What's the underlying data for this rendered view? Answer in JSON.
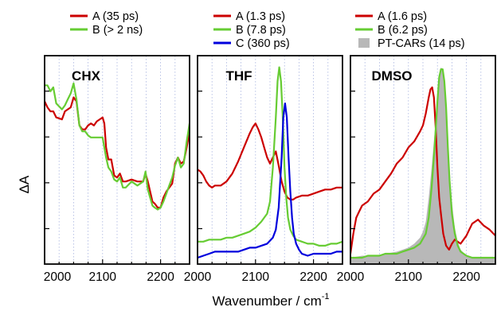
{
  "chart_data": [
    {
      "type": "line",
      "panel_title": "CHX",
      "x_range": [
        2000,
        2250
      ],
      "x_ticks": [
        2000,
        2100,
        2200
      ],
      "x_tick_labels": [
        "2000",
        "2100",
        "2200"
      ],
      "y_range": [
        0,
        1
      ],
      "legend_placement": "above",
      "colors": {
        "A": "#cc0000",
        "B": "#66cc33"
      },
      "series": [
        {
          "name": "A (35 ps)",
          "color": "#cc0000",
          "x": [
            2000,
            2005,
            2010,
            2015,
            2020,
            2030,
            2035,
            2040,
            2045,
            2050,
            2055,
            2060,
            2065,
            2070,
            2075,
            2080,
            2085,
            2090,
            2095,
            2100,
            2103,
            2106,
            2110,
            2115,
            2120,
            2125,
            2130,
            2135,
            2140,
            2150,
            2160,
            2170,
            2174,
            2178,
            2182,
            2186,
            2190,
            2195,
            2200,
            2205,
            2210,
            2215,
            2220,
            2225,
            2230,
            2235,
            2240,
            2245,
            2250
          ],
          "y": [
            0.78,
            0.75,
            0.73,
            0.73,
            0.7,
            0.69,
            0.73,
            0.74,
            0.75,
            0.8,
            0.78,
            0.66,
            0.64,
            0.64,
            0.66,
            0.67,
            0.66,
            0.68,
            0.69,
            0.7,
            0.67,
            0.55,
            0.49,
            0.49,
            0.41,
            0.4,
            0.42,
            0.38,
            0.38,
            0.39,
            0.38,
            0.38,
            0.42,
            0.38,
            0.33,
            0.28,
            0.27,
            0.25,
            0.25,
            0.3,
            0.33,
            0.35,
            0.37,
            0.47,
            0.5,
            0.47,
            0.48,
            0.55,
            0.63
          ]
        },
        {
          "name": "B (> 2 ns)",
          "color": "#66cc33",
          "x": [
            2000,
            2005,
            2010,
            2015,
            2020,
            2030,
            2035,
            2040,
            2045,
            2050,
            2055,
            2060,
            2065,
            2070,
            2075,
            2080,
            2085,
            2090,
            2095,
            2100,
            2103,
            2106,
            2110,
            2115,
            2120,
            2125,
            2130,
            2135,
            2140,
            2150,
            2160,
            2170,
            2174,
            2178,
            2182,
            2186,
            2190,
            2195,
            2200,
            2205,
            2210,
            2215,
            2220,
            2225,
            2230,
            2235,
            2240,
            2245,
            2250
          ],
          "y": [
            0.86,
            0.86,
            0.83,
            0.85,
            0.77,
            0.74,
            0.76,
            0.79,
            0.82,
            0.87,
            0.79,
            0.66,
            0.63,
            0.63,
            0.61,
            0.6,
            0.6,
            0.6,
            0.6,
            0.6,
            0.55,
            0.5,
            0.45,
            0.43,
            0.39,
            0.38,
            0.4,
            0.35,
            0.35,
            0.38,
            0.36,
            0.38,
            0.43,
            0.34,
            0.3,
            0.26,
            0.25,
            0.24,
            0.25,
            0.28,
            0.32,
            0.36,
            0.4,
            0.46,
            0.5,
            0.45,
            0.47,
            0.58,
            0.67
          ]
        }
      ]
    },
    {
      "type": "line",
      "panel_title": "THF",
      "x_range": [
        2000,
        2250
      ],
      "x_ticks": [
        2000,
        2100,
        2200
      ],
      "x_tick_labels": [
        "2000",
        "2100",
        "2200"
      ],
      "y_range": [
        0,
        1
      ],
      "legend_placement": "above",
      "colors": {
        "A": "#cc0000",
        "B": "#66cc33",
        "C": "#0000dd"
      },
      "series": [
        {
          "name": "A (1.3 ps)",
          "color": "#cc0000",
          "x": [
            2000,
            2005,
            2010,
            2015,
            2020,
            2025,
            2030,
            2040,
            2050,
            2060,
            2070,
            2080,
            2090,
            2095,
            2100,
            2105,
            2110,
            2115,
            2120,
            2125,
            2130,
            2135,
            2140,
            2145,
            2150,
            2155,
            2160,
            2165,
            2170,
            2180,
            2190,
            2200,
            2210,
            2220,
            2230,
            2240,
            2250
          ],
          "y": [
            0.44,
            0.43,
            0.41,
            0.38,
            0.36,
            0.35,
            0.36,
            0.36,
            0.38,
            0.42,
            0.48,
            0.55,
            0.62,
            0.65,
            0.67,
            0.64,
            0.6,
            0.55,
            0.5,
            0.47,
            0.5,
            0.53,
            0.46,
            0.38,
            0.33,
            0.3,
            0.29,
            0.29,
            0.3,
            0.31,
            0.31,
            0.32,
            0.33,
            0.34,
            0.34,
            0.35,
            0.35
          ]
        },
        {
          "name": "B (7.8 ps)",
          "color": "#66cc33",
          "x": [
            2000,
            2010,
            2020,
            2030,
            2040,
            2050,
            2060,
            2070,
            2080,
            2090,
            2100,
            2110,
            2120,
            2125,
            2130,
            2135,
            2138,
            2141,
            2144,
            2147,
            2150,
            2153,
            2156,
            2160,
            2165,
            2170,
            2180,
            2190,
            2200,
            2210,
            2220,
            2230,
            2240,
            2250
          ],
          "y": [
            0.08,
            0.08,
            0.09,
            0.09,
            0.09,
            0.1,
            0.1,
            0.11,
            0.12,
            0.13,
            0.15,
            0.18,
            0.22,
            0.28,
            0.45,
            0.7,
            0.88,
            0.95,
            0.88,
            0.7,
            0.45,
            0.3,
            0.2,
            0.14,
            0.11,
            0.09,
            0.08,
            0.07,
            0.07,
            0.06,
            0.06,
            0.07,
            0.07,
            0.08
          ]
        },
        {
          "name": "C (360 ps)",
          "color": "#0000dd",
          "x": [
            2000,
            2010,
            2020,
            2030,
            2040,
            2050,
            2060,
            2070,
            2080,
            2090,
            2100,
            2110,
            2120,
            2130,
            2135,
            2140,
            2145,
            2148,
            2151,
            2154,
            2157,
            2160,
            2163,
            2166,
            2170,
            2175,
            2180,
            2190,
            2200,
            2210,
            2220,
            2230,
            2240,
            2250
          ],
          "y": [
            0.0,
            0.01,
            0.02,
            0.03,
            0.03,
            0.03,
            0.03,
            0.03,
            0.04,
            0.05,
            0.05,
            0.06,
            0.07,
            0.1,
            0.14,
            0.25,
            0.5,
            0.7,
            0.77,
            0.7,
            0.5,
            0.33,
            0.2,
            0.12,
            0.07,
            0.04,
            0.02,
            0.01,
            0.02,
            0.02,
            0.02,
            0.02,
            0.03,
            0.03
          ]
        }
      ]
    },
    {
      "type": "line",
      "panel_title": "DMSO",
      "x_range": [
        2000,
        2250
      ],
      "x_ticks": [
        2000,
        2100,
        2200
      ],
      "x_tick_labels": [
        "2000",
        "2100",
        "2200"
      ],
      "y_range": [
        0,
        1
      ],
      "legend_placement": "above",
      "colors": {
        "A": "#cc0000",
        "B": "#66cc33",
        "PT-CARs": "#b8b8b8"
      },
      "series": [
        {
          "name": "A (1.6 ps)",
          "color": "#cc0000",
          "x": [
            2000,
            2005,
            2010,
            2015,
            2020,
            2030,
            2040,
            2050,
            2060,
            2070,
            2080,
            2090,
            2100,
            2110,
            2120,
            2125,
            2130,
            2135,
            2138,
            2141,
            2144,
            2147,
            2150,
            2153,
            2156,
            2160,
            2165,
            2170,
            2175,
            2180,
            2190,
            2200,
            2205,
            2210,
            2220,
            2230,
            2240,
            2250
          ],
          "y": [
            0.02,
            0.12,
            0.2,
            0.23,
            0.26,
            0.28,
            0.32,
            0.34,
            0.38,
            0.42,
            0.47,
            0.5,
            0.55,
            0.58,
            0.63,
            0.66,
            0.72,
            0.8,
            0.84,
            0.85,
            0.8,
            0.65,
            0.45,
            0.3,
            0.22,
            0.12,
            0.06,
            0.04,
            0.07,
            0.09,
            0.07,
            0.11,
            0.14,
            0.17,
            0.19,
            0.16,
            0.14,
            0.11
          ]
        },
        {
          "name": "B (6.2 ps)",
          "color": "#66cc33",
          "x": [
            2000,
            2010,
            2020,
            2030,
            2040,
            2050,
            2060,
            2070,
            2080,
            2090,
            2100,
            2110,
            2120,
            2130,
            2135,
            2140,
            2145,
            2150,
            2153,
            2156,
            2159,
            2162,
            2165,
            2168,
            2171,
            2175,
            2180,
            2185,
            2190,
            2200,
            2210,
            2220,
            2230,
            2240,
            2250
          ],
          "y": [
            0.0,
            0.0,
            0.0,
            0.01,
            0.01,
            0.01,
            0.02,
            0.02,
            0.02,
            0.03,
            0.04,
            0.05,
            0.07,
            0.12,
            0.2,
            0.35,
            0.55,
            0.78,
            0.9,
            0.94,
            0.94,
            0.88,
            0.75,
            0.55,
            0.38,
            0.22,
            0.12,
            0.06,
            0.03,
            0.01,
            0.0,
            0.0,
            0.0,
            0.0,
            0.0
          ]
        },
        {
          "name": "PT-CARs (14 ps)",
          "color": "#b8b8b8",
          "style": "filled-area",
          "x": [
            2000,
            2020,
            2040,
            2060,
            2080,
            2090,
            2100,
            2110,
            2120,
            2125,
            2130,
            2135,
            2140,
            2145,
            2150,
            2153,
            2156,
            2159,
            2162,
            2165,
            2168,
            2171,
            2175,
            2180,
            2185,
            2190,
            2200,
            2210,
            2220,
            2230,
            2240,
            2250
          ],
          "y": [
            0.0,
            0.01,
            0.01,
            0.02,
            0.03,
            0.04,
            0.05,
            0.07,
            0.1,
            0.13,
            0.18,
            0.3,
            0.45,
            0.62,
            0.8,
            0.9,
            0.95,
            0.94,
            0.88,
            0.76,
            0.6,
            0.44,
            0.28,
            0.15,
            0.08,
            0.04,
            0.01,
            0.0,
            0.0,
            0.0,
            0.0,
            0.0
          ]
        }
      ]
    }
  ],
  "figure": {
    "ylabel": "ΔA",
    "xlabel_main": "Wavenumber / cm",
    "xlabel_sup": "-1"
  },
  "legends": [
    {
      "items": [
        {
          "label": "A (35 ps)",
          "color": "#cc0000",
          "kind": "line"
        },
        {
          "label": "B (> 2 ns)",
          "color": "#66cc33",
          "kind": "line"
        }
      ]
    },
    {
      "items": [
        {
          "label": "A (1.3 ps)",
          "color": "#cc0000",
          "kind": "line"
        },
        {
          "label": "B (7.8 ps)",
          "color": "#66cc33",
          "kind": "line"
        },
        {
          "label": "C (360 ps)",
          "color": "#0000dd",
          "kind": "line"
        }
      ]
    },
    {
      "items": [
        {
          "label": "A (1.6 ps)",
          "color": "#cc0000",
          "kind": "line"
        },
        {
          "label": "B (6.2 ps)",
          "color": "#66cc33",
          "kind": "line"
        },
        {
          "label": "PT-CARs (14 ps)",
          "color": "#b8b8b8",
          "kind": "box"
        }
      ]
    }
  ]
}
